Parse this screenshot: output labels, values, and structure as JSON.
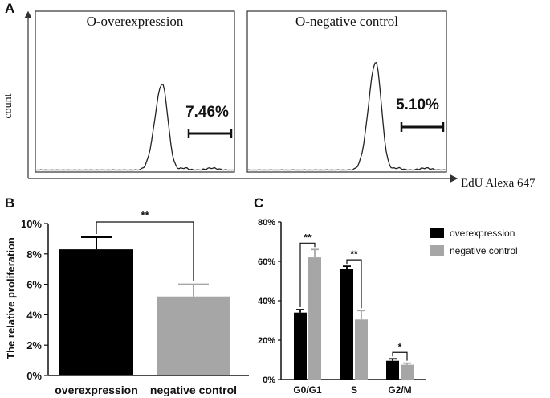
{
  "panels": {
    "a": {
      "letter": "A"
    },
    "b": {
      "letter": "B"
    },
    "c": {
      "letter": "C"
    }
  },
  "chart_data": [
    {
      "type": "histogram",
      "panel": "A",
      "ylabel": "count",
      "xlabel": "EdU Alexa 647",
      "plots": [
        {
          "title": "O-overexpression",
          "gate_label": "7.46%",
          "gate_percent": 7.46
        },
        {
          "title": "O-negative control",
          "gate_label": "5.10%",
          "gate_percent": 5.1
        }
      ]
    },
    {
      "type": "bar",
      "panel": "B",
      "ylabel": "The relative proliferation",
      "categories": [
        "overexpression",
        "negative control"
      ],
      "values": [
        8.3,
        5.2
      ],
      "errors": [
        0.8,
        0.8
      ],
      "colors": [
        "#000000",
        "#a6a6a6"
      ],
      "ylim": [
        0,
        10
      ],
      "yticks": [
        "0%",
        "2%",
        "4%",
        "6%",
        "8%",
        "10%"
      ],
      "significance": "**"
    },
    {
      "type": "bar",
      "panel": "C",
      "categories": [
        "G0/G1",
        "S",
        "G2/M"
      ],
      "series": [
        {
          "name": "overexpression",
          "values": [
            34,
            56,
            9.5
          ],
          "errors": [
            1.5,
            1.5,
            1
          ],
          "color": "#000000"
        },
        {
          "name": "negative control",
          "values": [
            62,
            30.5,
            7.5
          ],
          "errors": [
            4,
            4.5,
            0.8
          ],
          "color": "#a6a6a6"
        }
      ],
      "ylim": [
        0,
        80
      ],
      "yticks": [
        "0%",
        "20%",
        "40%",
        "60%",
        "80%"
      ],
      "significance": [
        "**",
        "**",
        "*"
      ],
      "legend_position": "top-right"
    }
  ]
}
